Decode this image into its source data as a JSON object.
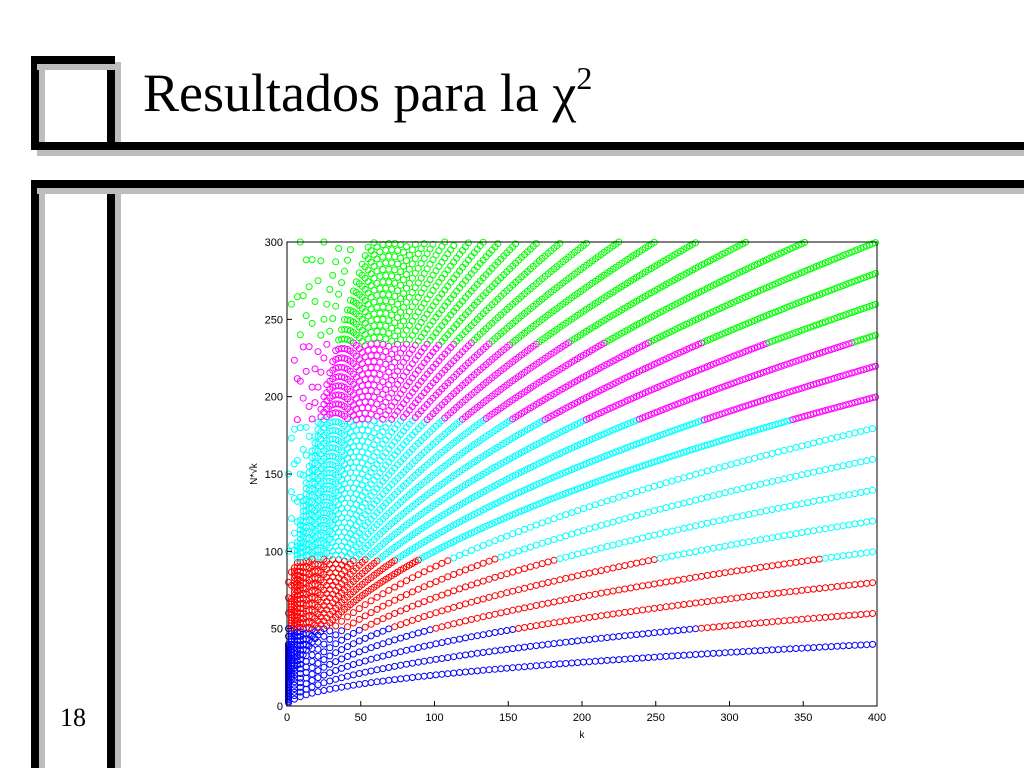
{
  "slide": {
    "title": "Resultados para la χ",
    "title_superscript": "2",
    "page_number": "18"
  },
  "colors": {
    "frame": "#000000",
    "frame_shadow": "#bdbdbd",
    "blue": "#0000ff",
    "red": "#ff0000",
    "cyan": "#00ffff",
    "magenta": "#ff00ff",
    "green": "#00ff00"
  },
  "chart_data": {
    "type": "scatter",
    "title": "",
    "xlabel": "k",
    "ylabel": "N*√k",
    "xlim": [
      0,
      400
    ],
    "ylim": [
      0,
      300
    ],
    "xticks": [
      0,
      50,
      100,
      150,
      200,
      250,
      300,
      350,
      400
    ],
    "yticks": [
      0,
      50,
      100,
      150,
      200,
      250,
      300
    ],
    "grid": false,
    "marker": "open-circle",
    "description_of_data": "Each curve is N*sqrt(k) for fixed integer N, points k = 1..400 (capped at 300); points colored by result band",
    "N_values": [
      2,
      3,
      4,
      5,
      6,
      7,
      8,
      9,
      10,
      11,
      12,
      13,
      14,
      15,
      16,
      17,
      18,
      19,
      20,
      21,
      22,
      23,
      24,
      25,
      26,
      27,
      28,
      29,
      30,
      31,
      32,
      33,
      34,
      35,
      36,
      37,
      38,
      39,
      40,
      45,
      50,
      60,
      70,
      80,
      100,
      150
    ],
    "color_bands": [
      {
        "color": "blue",
        "y_min": 0,
        "y_max": 50
      },
      {
        "color": "red",
        "y_min": 50,
        "y_max": 95
      },
      {
        "color": "cyan",
        "y_min": 95,
        "y_max": 185
      },
      {
        "color": "magenta",
        "y_min": 185,
        "y_max": 235
      },
      {
        "color": "green",
        "y_min": 235,
        "y_max": 300
      }
    ]
  }
}
